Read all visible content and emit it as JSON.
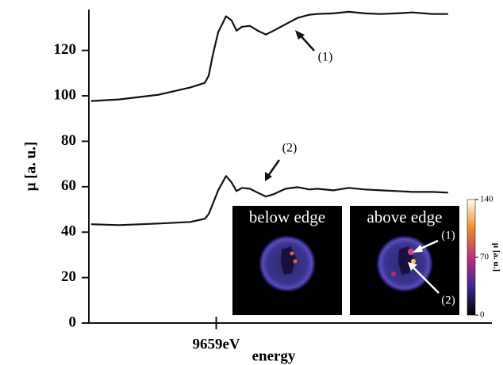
{
  "chart_data": {
    "type": "line",
    "y_label": "μ  [a. u.]",
    "x_label": "energy",
    "x": [
      9620.7,
      9629.2,
      9641.4,
      9651.1,
      9655.5,
      9656.7,
      9657.9,
      9659.6,
      9662.0,
      9663.7,
      9665.2,
      9666.9,
      9669.3,
      9671.7,
      9674.2,
      9676.6,
      9680.2,
      9683.9,
      9687.5,
      9689.9,
      9694.8,
      9699.6,
      9704.5,
      9709.4,
      9714.2,
      9719.1,
      9725.1,
      9730.0
    ],
    "series": [
      {
        "color": "#111111",
        "values": [
          97.7,
          98.4,
          100.5,
          103.7,
          105.7,
          108.9,
          117.6,
          128.0,
          135.0,
          133.2,
          128.7,
          130.4,
          130.8,
          128.7,
          127.0,
          128.7,
          131.5,
          134.3,
          135.7,
          136.0,
          136.3,
          137.0,
          136.3,
          136.0,
          136.3,
          136.7,
          136.0,
          136.0
        ]
      },
      {
        "color": "#111111",
        "values": [
          43.5,
          43.1,
          43.8,
          44.5,
          45.9,
          48.0,
          52.2,
          58.4,
          64.7,
          61.9,
          58.1,
          59.5,
          59.1,
          57.4,
          55.7,
          56.7,
          59.1,
          59.8,
          58.8,
          59.1,
          58.4,
          59.5,
          58.8,
          58.4,
          58.1,
          57.7,
          57.7,
          57.4
        ]
      }
    ],
    "xlim": [
      9620,
      9743.4
    ],
    "xticks": [
      {
        "value": 9659,
        "label": "9659eV"
      }
    ],
    "ylim": [
      0,
      138
    ],
    "yticks": [
      0,
      20,
      40,
      60,
      80,
      100,
      120
    ],
    "annotations": [
      "(1)",
      "(2)"
    ],
    "inset": {
      "panels": [
        "below edge",
        "above edge"
      ],
      "markers": [
        "(1)",
        "(2)"
      ],
      "colorbar_label": "μ [a. u.]",
      "colorbar_lim": [
        0,
        140
      ],
      "colorbar_ticks": [
        0,
        70,
        140
      ]
    }
  }
}
